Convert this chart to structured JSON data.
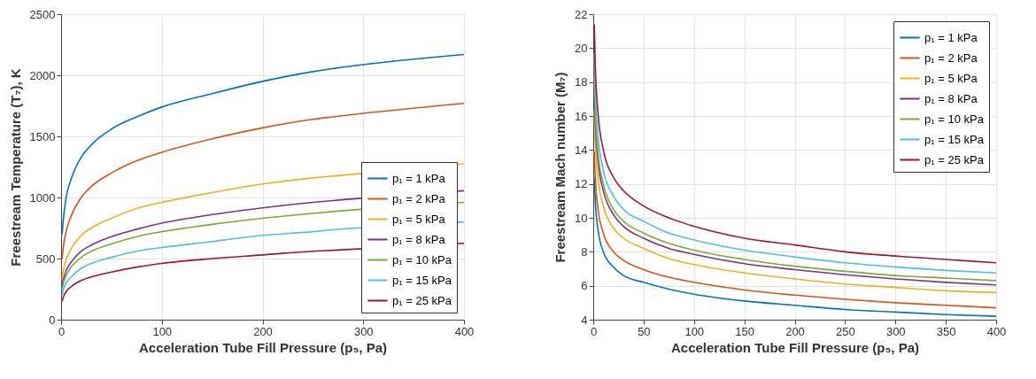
{
  "chart_data": [
    {
      "type": "line",
      "xlabel": "Acceleration Tube Fill Pressure (p₅, Pa)",
      "ylabel": "Freestream Temperature (T₇), K",
      "x": [
        1,
        2,
        5,
        10,
        20,
        30,
        50,
        75,
        100,
        150,
        200,
        250,
        270,
        400
      ],
      "xlim": [
        0,
        400
      ],
      "xticks": [
        0,
        100,
        200,
        300,
        400
      ],
      "ylim": [
        0,
        2500
      ],
      "yticks": [
        0,
        500,
        1000,
        1500,
        2000,
        2500
      ],
      "grid": true,
      "legend": "bottom right",
      "line_style": "solid",
      "series": [
        {
          "name": "p₁ = 1 kPa",
          "color": "#0072bd",
          "values": [
            700,
            800,
            1000,
            1150,
            1330,
            1430,
            1560,
            1660,
            1740,
            1850,
            1950,
            2030,
            2055,
            2170
          ]
        },
        {
          "name": "p₁ = 2 kPa",
          "color": "#d95319",
          "values": [
            500,
            580,
            720,
            850,
            1000,
            1090,
            1200,
            1300,
            1370,
            1480,
            1570,
            1640,
            1660,
            1770
          ]
        },
        {
          "name": "p₁ = 5 kPa",
          "color": "#edb120",
          "values": [
            330,
            390,
            490,
            580,
            690,
            750,
            830,
            910,
            960,
            1040,
            1110,
            1160,
            1175,
            1275
          ]
        },
        {
          "name": "p₁ = 8 kPa",
          "color": "#7e2f8e",
          "values": [
            280,
            320,
            400,
            470,
            560,
            610,
            680,
            740,
            790,
            860,
            915,
            960,
            975,
            1055
          ]
        },
        {
          "name": "p₁ = 10 kPa",
          "color": "#77ac30",
          "values": [
            250,
            290,
            360,
            430,
            510,
            560,
            620,
            680,
            720,
            780,
            830,
            870,
            885,
            960
          ]
        },
        {
          "name": "p₁ = 15 kPa",
          "color": "#4dbeee",
          "values": [
            200,
            240,
            300,
            350,
            420,
            460,
            510,
            560,
            590,
            640,
            690,
            720,
            735,
            800
          ]
        },
        {
          "name": "p₁ = 25 kPa",
          "color": "#a2142f",
          "values": [
            150,
            180,
            230,
            270,
            320,
            350,
            390,
            430,
            460,
            500,
            530,
            560,
            568,
            625
          ]
        }
      ]
    },
    {
      "type": "line",
      "xlabel": "Acceleration Tube Fill Pressure (p₅, Pa)",
      "ylabel": "Freestream Mach number (M₇)",
      "x": [
        1,
        2,
        5,
        10,
        20,
        30,
        50,
        75,
        100,
        150,
        200,
        250,
        300,
        350,
        400
      ],
      "xlim": [
        0,
        400
      ],
      "xticks": [
        0,
        50,
        100,
        150,
        200,
        250,
        300,
        350,
        400
      ],
      "ylim": [
        4,
        22
      ],
      "yticks": [
        4,
        6,
        8,
        10,
        12,
        14,
        16,
        18,
        20,
        22
      ],
      "grid": true,
      "legend": "top right",
      "line_style": "solid",
      "series": [
        {
          "name": "p₁ = 1 kPa",
          "color": "#0072bd",
          "values": [
            12.4,
            11,
            9.2,
            8,
            7.1,
            6.6,
            6.2,
            5.8,
            5.5,
            5.1,
            4.85,
            4.6,
            4.45,
            4.3,
            4.2
          ]
        },
        {
          "name": "p₁ = 2 kPa",
          "color": "#d95319",
          "values": [
            13.9,
            12.4,
            10.4,
            9.1,
            8,
            7.5,
            6.95,
            6.5,
            6.2,
            5.75,
            5.45,
            5.2,
            5,
            4.85,
            4.7
          ]
        },
        {
          "name": "p₁ = 5 kPa",
          "color": "#edb120",
          "values": [
            16.3,
            14.5,
            12.2,
            10.7,
            9.4,
            8.8,
            8.2,
            7.6,
            7.25,
            6.75,
            6.4,
            6.1,
            5.9,
            5.7,
            5.6
          ]
        },
        {
          "name": "p₁ = 8 kPa",
          "color": "#7e2f8e",
          "values": [
            17.8,
            15.8,
            13.2,
            11.6,
            10.2,
            9.5,
            8.8,
            8.2,
            7.85,
            7.3,
            6.95,
            6.65,
            6.4,
            6.2,
            6.05
          ]
        },
        {
          "name": "p₁ = 10 kPa",
          "color": "#77ac30",
          "values": [
            18.4,
            16.3,
            13.7,
            12,
            10.5,
            9.8,
            9.1,
            8.5,
            8.1,
            7.55,
            7.15,
            6.85,
            6.6,
            6.45,
            6.3
          ]
        },
        {
          "name": "p₁ = 15 kPa",
          "color": "#4dbeee",
          "values": [
            19.7,
            17.5,
            14.7,
            12.8,
            11.3,
            10.5,
            9.8,
            9.1,
            8.7,
            8.1,
            7.7,
            7.35,
            7.1,
            6.9,
            6.75
          ]
        },
        {
          "name": "p₁ = 25 kPa",
          "color": "#a2142f",
          "values": [
            21.4,
            19,
            16,
            14,
            12.4,
            11.6,
            10.7,
            10,
            9.5,
            8.8,
            8.4,
            8,
            7.75,
            7.55,
            7.35
          ]
        }
      ]
    }
  ]
}
